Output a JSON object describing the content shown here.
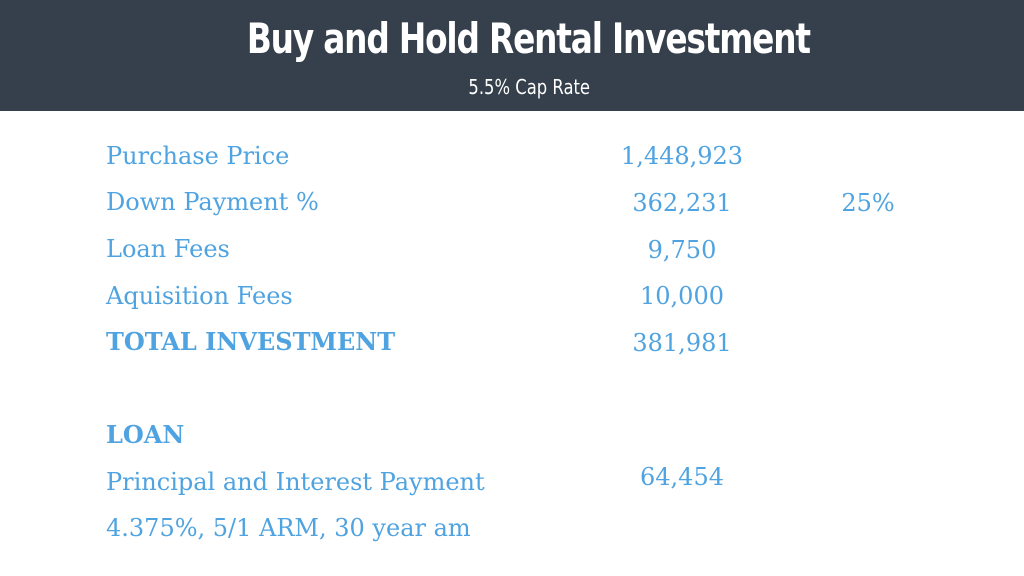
{
  "header": {
    "title": "Buy and Hold Rental Investment",
    "subtitle": "5.5% Cap Rate"
  },
  "colors": {
    "header_bg": "#36404c",
    "accent_text": "#4fa3e0",
    "header_text": "#ffffff"
  },
  "rows": {
    "purchase_price": {
      "label": "Purchase Price",
      "value": "1,448,923"
    },
    "down_payment": {
      "label": "Down Payment %",
      "value": "362,231",
      "percent": "25%"
    },
    "loan_fees": {
      "label": "Loan Fees",
      "value": "9,750"
    },
    "acquisition_fees": {
      "label": "Aquisition Fees",
      "value": "10,000"
    },
    "total_investment": {
      "label": "TOTAL INVESTMENT",
      "value": "381,981"
    }
  },
  "loan": {
    "heading": "LOAN",
    "payment_label": "Principal and Interest Payment",
    "payment_value": "64,454",
    "terms": "4.375%, 5/1 ARM, 30 year am"
  }
}
